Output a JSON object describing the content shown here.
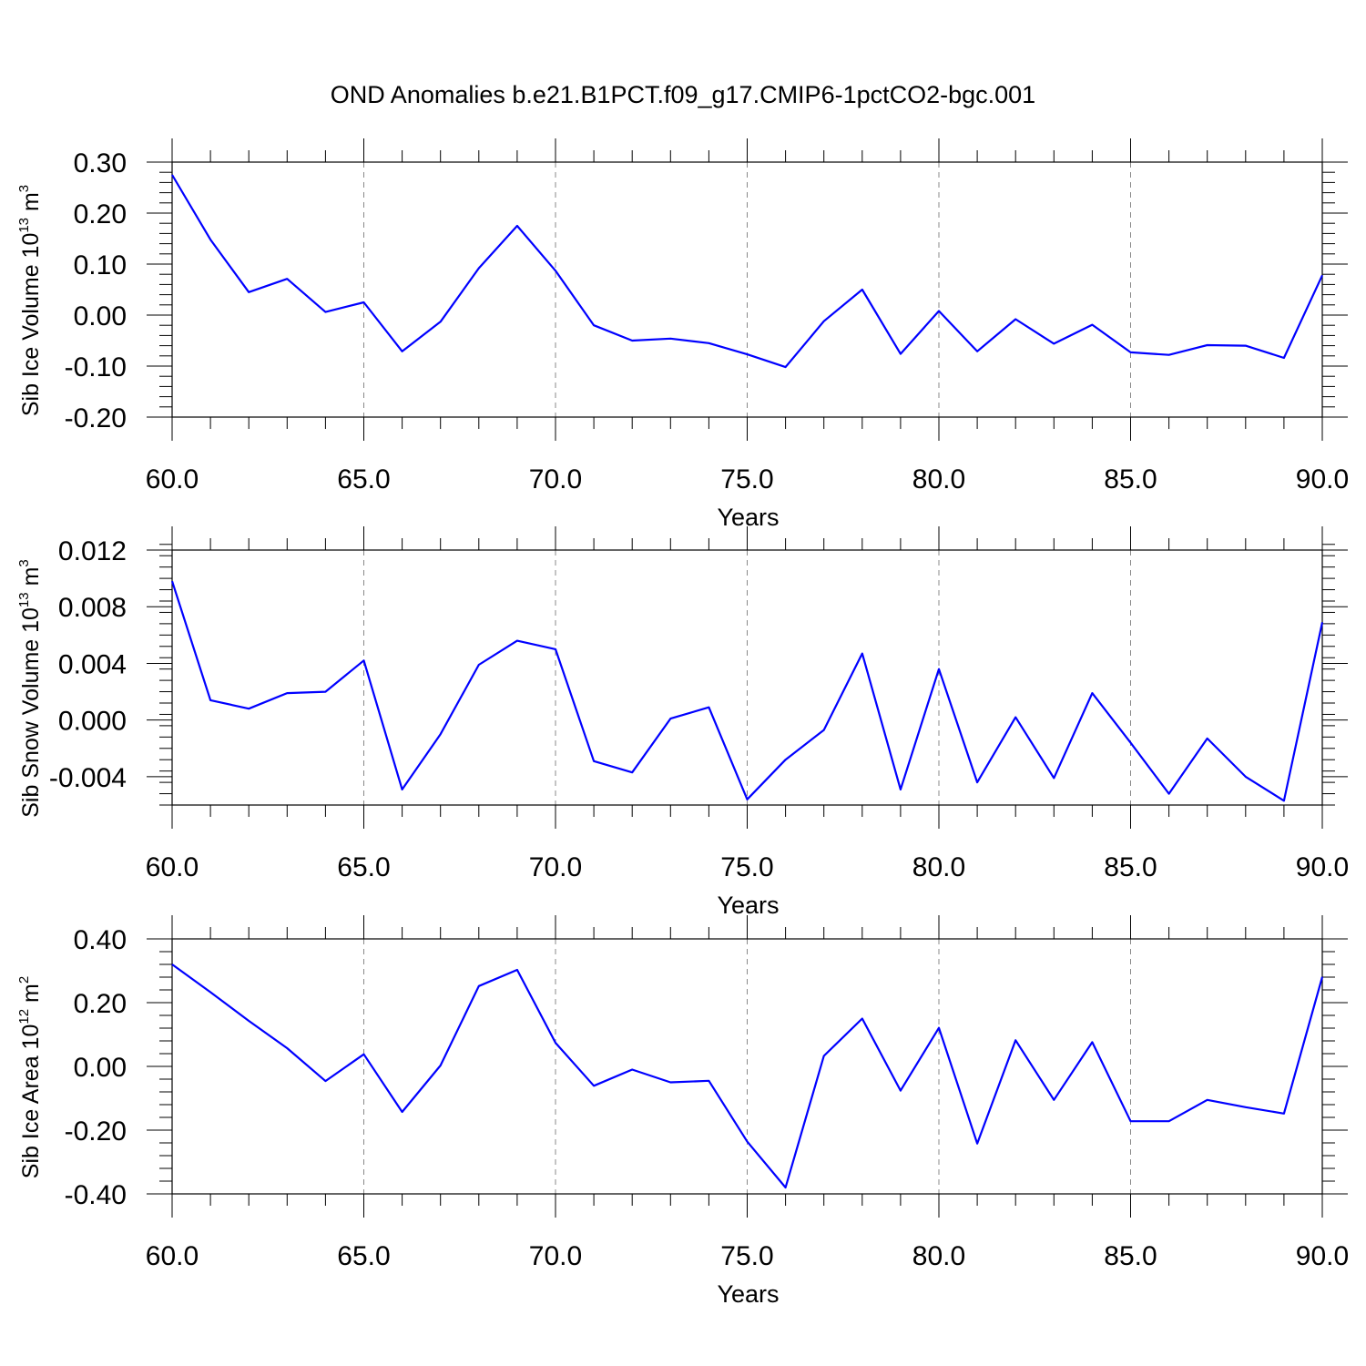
{
  "chart_data": {
    "type": "line",
    "title": "OND Anomalies b.e21.B1PCT.f09_g17.CMIP6-1pctCO2-bgc.001",
    "line_color": "#0000ff",
    "grid": "vertical dashed at major x ticks",
    "panels": [
      {
        "ylabel": "Sib Ice Volume 10",
        "ylabel_sup": "13",
        "ylabel_unit": " m",
        "ylabel_unit_sup": "3",
        "xlabel": "Years",
        "xlim": [
          60,
          90
        ],
        "ylim": [
          -0.2,
          0.3
        ],
        "x_ticks": [
          "60.0",
          "65.0",
          "70.0",
          "75.0",
          "80.0",
          "85.0",
          "90.0"
        ],
        "y_ticks": [
          "0.30",
          "0.20",
          "0.10",
          "0.00",
          "-0.10",
          "-0.20"
        ],
        "y_tick_values": [
          0.3,
          0.2,
          0.1,
          0.0,
          -0.1,
          -0.2
        ],
        "y_minor_step": 0.02,
        "x": [
          60,
          61,
          62,
          63,
          64,
          65,
          66,
          67,
          68,
          69,
          70,
          71,
          72,
          73,
          74,
          75,
          76,
          77,
          78,
          79,
          80,
          81,
          82,
          83,
          84,
          85,
          86,
          87,
          88,
          89,
          90
        ],
        "values": [
          0.275,
          0.148,
          0.045,
          0.071,
          0.006,
          0.025,
          -0.071,
          -0.013,
          0.092,
          0.175,
          0.087,
          -0.02,
          -0.05,
          -0.046,
          -0.055,
          -0.077,
          -0.102,
          -0.012,
          0.05,
          -0.076,
          0.008,
          -0.071,
          -0.008,
          -0.056,
          -0.019,
          -0.073,
          -0.078,
          -0.059,
          -0.06,
          -0.084,
          0.078
        ]
      },
      {
        "ylabel": "Sib Snow Volume 10",
        "ylabel_sup": "13",
        "ylabel_unit": " m",
        "ylabel_unit_sup": "3",
        "xlabel": "Years",
        "xlim": [
          60,
          90
        ],
        "ylim": [
          -0.006,
          0.012
        ],
        "x_ticks": [
          "60.0",
          "65.0",
          "70.0",
          "75.0",
          "80.0",
          "85.0",
          "90.0"
        ],
        "y_ticks": [
          "0.012",
          "0.008",
          "0.004",
          "0.000",
          "-0.004"
        ],
        "y_tick_values": [
          0.012,
          0.008,
          0.004,
          0.0,
          -0.004
        ],
        "y_minor_step": 0.0008,
        "x": [
          60,
          61,
          62,
          63,
          64,
          65,
          66,
          67,
          68,
          69,
          70,
          71,
          72,
          73,
          74,
          75,
          76,
          77,
          78,
          79,
          80,
          81,
          82,
          83,
          84,
          85,
          86,
          87,
          88,
          89,
          90
        ],
        "values": [
          0.0098,
          0.0014,
          0.0008,
          0.0019,
          0.002,
          0.0042,
          -0.0049,
          -0.001,
          0.0039,
          0.0056,
          0.005,
          -0.0029,
          -0.0037,
          0.0001,
          0.0009,
          -0.0056,
          -0.0028,
          -0.0007,
          0.0047,
          -0.0049,
          0.0036,
          -0.0044,
          0.0002,
          -0.0041,
          0.0019,
          -0.0016,
          -0.0052,
          -0.0013,
          -0.004,
          -0.0057,
          0.0069
        ]
      },
      {
        "ylabel": "Sib Ice Area 10",
        "ylabel_sup": "12",
        "ylabel_unit": " m",
        "ylabel_unit_sup": "2",
        "xlabel": "Years",
        "xlim": [
          60,
          90
        ],
        "ylim": [
          -0.4,
          0.4
        ],
        "x_ticks": [
          "60.0",
          "65.0",
          "70.0",
          "75.0",
          "80.0",
          "85.0",
          "90.0"
        ],
        "y_ticks": [
          "0.40",
          "0.20",
          "0.00",
          "-0.20",
          "-0.40"
        ],
        "y_tick_values": [
          0.4,
          0.2,
          0.0,
          -0.2,
          -0.4
        ],
        "y_minor_step": 0.04,
        "x": [
          60,
          61,
          62,
          63,
          64,
          65,
          66,
          67,
          68,
          69,
          70,
          71,
          72,
          73,
          74,
          75,
          76,
          77,
          78,
          79,
          80,
          81,
          82,
          83,
          84,
          85,
          86,
          87,
          88,
          89,
          90
        ],
        "values": [
          0.32,
          0.233,
          0.143,
          0.057,
          -0.046,
          0.038,
          -0.143,
          0.003,
          0.252,
          0.303,
          0.074,
          -0.061,
          -0.01,
          -0.05,
          -0.045,
          -0.236,
          -0.38,
          0.033,
          0.15,
          -0.076,
          0.121,
          -0.242,
          0.082,
          -0.105,
          0.076,
          -0.172,
          -0.172,
          -0.105,
          -0.128,
          -0.148,
          0.281
        ]
      }
    ]
  }
}
